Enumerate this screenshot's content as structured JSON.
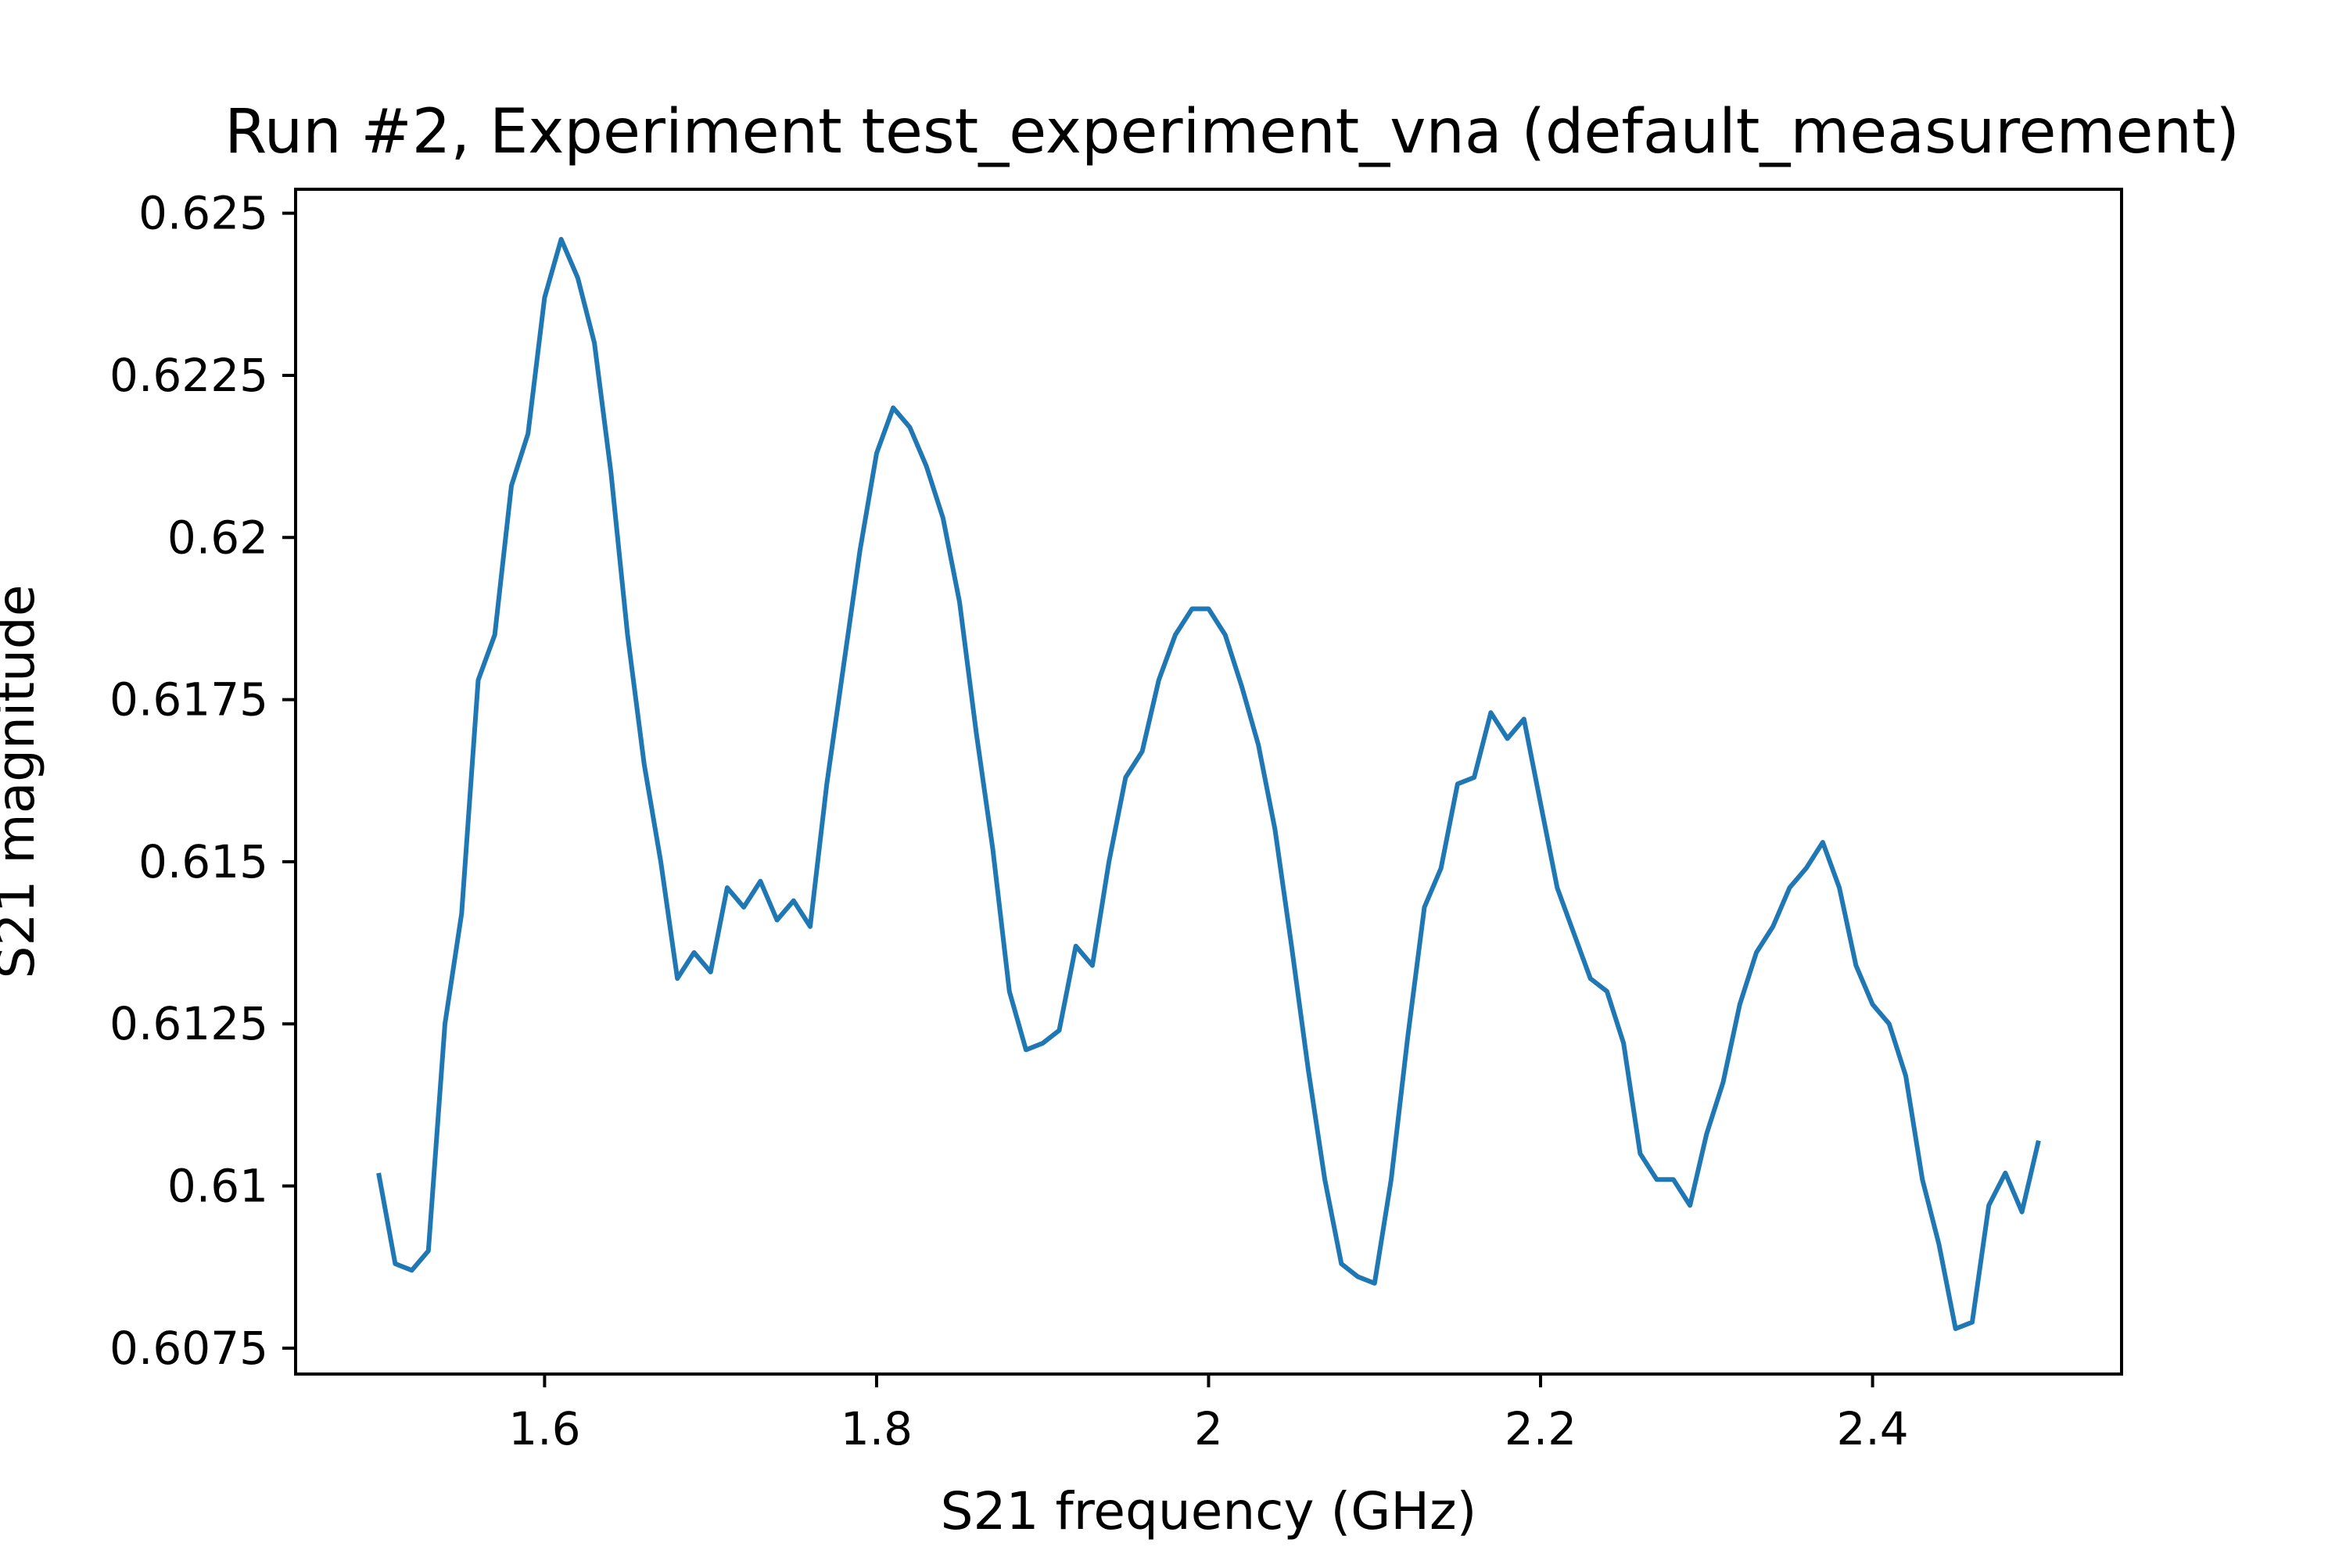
{
  "chart_data": {
    "type": "line",
    "title": "Run #2, Experiment test_experiment_vna (default_measurement)",
    "xlabel": "S21 frequency (GHz)",
    "ylabel": "S21 magnitude",
    "xlim": [
      1.45,
      2.55
    ],
    "ylim": [
      0.6071,
      0.62537
    ],
    "x_ticks": [
      1.6,
      1.8,
      2.0,
      2.2,
      2.4
    ],
    "x_tick_labels": [
      "1.6",
      "1.8",
      "2",
      "2.2",
      "2.4"
    ],
    "y_ticks": [
      0.6075,
      0.61,
      0.6125,
      0.615,
      0.6175,
      0.62,
      0.6225,
      0.625
    ],
    "y_tick_labels": [
      "0.6075",
      "0.61",
      "0.6125",
      "0.615",
      "0.6175",
      "0.62",
      "0.6225",
      "0.625"
    ],
    "grid": false,
    "line_color": "#1f77b4",
    "series": [
      {
        "x": [
          1.5,
          1.51,
          1.52,
          1.53,
          1.54,
          1.55,
          1.56,
          1.57,
          1.58,
          1.59,
          1.6,
          1.61,
          1.62,
          1.63,
          1.64,
          1.65,
          1.66,
          1.67,
          1.68,
          1.69,
          1.7,
          1.71,
          1.72,
          1.73,
          1.74,
          1.75,
          1.76,
          1.77,
          1.78,
          1.79,
          1.8,
          1.81,
          1.82,
          1.83,
          1.84,
          1.85,
          1.86,
          1.87,
          1.88,
          1.89,
          1.9,
          1.91,
          1.92,
          1.93,
          1.94,
          1.95,
          1.96,
          1.97,
          1.98,
          1.99,
          2.0,
          2.01,
          2.02,
          2.03,
          2.04,
          2.05,
          2.06,
          2.07,
          2.08,
          2.09,
          2.1,
          2.11,
          2.12,
          2.13,
          2.14,
          2.15,
          2.16,
          2.17,
          2.18,
          2.19,
          2.2,
          2.21,
          2.22,
          2.23,
          2.24,
          2.25,
          2.26,
          2.27,
          2.28,
          2.29,
          2.3,
          2.31,
          2.32,
          2.33,
          2.34,
          2.35,
          2.36,
          2.37,
          2.38,
          2.39,
          2.4,
          2.41,
          2.42,
          2.43,
          2.44,
          2.45,
          2.46,
          2.47,
          2.48,
          2.49,
          2.5
        ],
        "values": [
          0.6102,
          0.6088,
          0.6087,
          0.609,
          0.6125,
          0.6142,
          0.6178,
          0.6185,
          0.6208,
          0.6216,
          0.6237,
          0.6246,
          0.624,
          0.623,
          0.621,
          0.6185,
          0.6165,
          0.615,
          0.6132,
          0.6136,
          0.6133,
          0.6146,
          0.6143,
          0.6147,
          0.6141,
          0.6144,
          0.614,
          0.6162,
          0.618,
          0.6198,
          0.6213,
          0.622,
          0.6217,
          0.6211,
          0.6203,
          0.619,
          0.617,
          0.6152,
          0.613,
          0.6121,
          0.6122,
          0.6124,
          0.6137,
          0.6134,
          0.615,
          0.6163,
          0.6167,
          0.6178,
          0.6185,
          0.6189,
          0.6189,
          0.6185,
          0.6177,
          0.6168,
          0.6155,
          0.6137,
          0.6118,
          0.6101,
          0.6088,
          0.6086,
          0.6085,
          0.6101,
          0.6123,
          0.6143,
          0.6149,
          0.6162,
          0.6163,
          0.6173,
          0.6169,
          0.6172,
          0.6159,
          0.6146,
          0.6139,
          0.6132,
          0.613,
          0.6122,
          0.6105,
          0.6101,
          0.6101,
          0.6097,
          0.6108,
          0.6116,
          0.6128,
          0.6136,
          0.614,
          0.6146,
          0.6149,
          0.6153,
          0.6146,
          0.6134,
          0.6128,
          0.6125,
          0.6117,
          0.6101,
          0.6091,
          0.6078,
          0.6079,
          0.6097,
          0.6102,
          0.6096,
          0.6107
        ]
      }
    ]
  }
}
